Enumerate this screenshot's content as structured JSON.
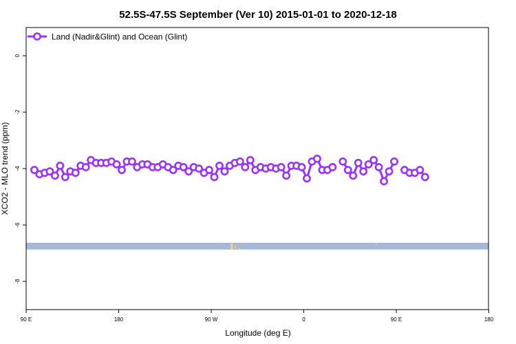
{
  "chart_data": {
    "type": "line",
    "title": "52.5S-47.5S September (Ver 10)   2015-01-01 to 2020-12-18",
    "xlabel": "Longitude (deg E)",
    "ylabel": "XCO2 - MLO trend (ppm)",
    "xlim": [
      90,
      450
    ],
    "ylim": [
      -9,
      1
    ],
    "x_ticks": [
      {
        "value": 90,
        "label": "90 E"
      },
      {
        "value": 180,
        "label": "180"
      },
      {
        "value": 270,
        "label": "90 W"
      },
      {
        "value": 360,
        "label": "0"
      },
      {
        "value": 450,
        "label": "90 E"
      },
      {
        "value": 540,
        "label": "180"
      }
    ],
    "y_ticks": [
      {
        "value": 0,
        "label": "0"
      },
      {
        "value": -2,
        "label": "-2"
      },
      {
        "value": -4,
        "label": "-4"
      },
      {
        "value": -6,
        "label": "-6"
      },
      {
        "value": -8,
        "label": "-8"
      }
    ],
    "legend": {
      "position": "top-left"
    },
    "series": [
      {
        "name": "Land (Nadir&Glint) and Ocean (Glint)",
        "color": "#9b30ff",
        "points": [
          [
            98,
            -4.05
          ],
          [
            103,
            -4.2
          ],
          [
            108,
            -4.15
          ],
          [
            113,
            -4.1
          ],
          [
            118,
            -4.25
          ],
          [
            123,
            -3.9
          ],
          [
            128,
            -4.3
          ],
          [
            133,
            -4.1
          ],
          [
            138,
            -4.15
          ],
          [
            143,
            -3.9
          ],
          [
            148,
            -3.95
          ],
          [
            153,
            -3.7
          ],
          [
            158,
            -3.8
          ],
          [
            163,
            -3.8
          ],
          [
            168,
            -3.8
          ],
          [
            173,
            -3.75
          ],
          [
            178,
            -3.85
          ],
          [
            183,
            -4.05
          ],
          [
            188,
            -3.75
          ],
          [
            193,
            -3.75
          ],
          [
            198,
            -3.95
          ],
          [
            203,
            -3.85
          ],
          [
            208,
            -3.85
          ],
          [
            213,
            -3.95
          ],
          [
            218,
            -3.95
          ],
          [
            223,
            -3.85
          ],
          [
            228,
            -3.95
          ],
          [
            233,
            -4.05
          ],
          [
            238,
            -3.9
          ],
          [
            243,
            -3.95
          ],
          [
            248,
            -4.1
          ],
          [
            253,
            -3.95
          ],
          [
            258,
            -4.0
          ],
          [
            263,
            -4.15
          ],
          [
            268,
            -4.05
          ],
          [
            273,
            -4.3
          ],
          [
            278,
            -3.9
          ],
          [
            283,
            -4.1
          ],
          [
            288,
            -3.9
          ],
          [
            293,
            -3.8
          ],
          [
            298,
            -3.75
          ],
          [
            303,
            -3.95
          ],
          [
            308,
            -3.7
          ],
          [
            313,
            -4.05
          ],
          [
            318,
            -3.95
          ],
          [
            323,
            -4.0
          ],
          [
            328,
            -3.95
          ],
          [
            333,
            -4.0
          ],
          [
            338,
            -3.95
          ],
          [
            343,
            -4.25
          ],
          [
            348,
            -3.9
          ],
          [
            353,
            -3.9
          ],
          [
            358,
            -3.95
          ],
          [
            363,
            -4.35
          ],
          [
            368,
            -3.75
          ],
          [
            373,
            -3.65
          ],
          [
            378,
            -4.05
          ],
          [
            383,
            -4.05
          ],
          [
            388,
            -3.95
          ],
          null,
          [
            398,
            -3.75
          ],
          [
            403,
            -4.05
          ],
          [
            408,
            -4.25
          ],
          [
            413,
            -3.8
          ],
          [
            418,
            -4.1
          ],
          [
            423,
            -3.85
          ],
          [
            428,
            -3.7
          ],
          [
            433,
            -3.95
          ],
          [
            438,
            -4.45
          ],
          [
            443,
            -4.1
          ],
          [
            448,
            -3.75
          ],
          null,
          [
            458,
            -4.05
          ],
          [
            463,
            -4.15
          ],
          [
            468,
            -4.15
          ],
          [
            473,
            -4.05
          ],
          [
            478,
            -4.3
          ],
          [
            483,
            -3.9
          ],
          [
            488,
            -4.3
          ],
          [
            493,
            -4.1
          ],
          [
            498,
            -4.1
          ],
          [
            503,
            -3.9
          ],
          [
            508,
            -3.95
          ],
          [
            513,
            -3.7
          ],
          [
            518,
            -3.8
          ],
          [
            523,
            -3.8
          ],
          [
            528,
            -3.8
          ],
          [
            533,
            -3.75
          ],
          [
            538,
            -3.85
          ]
        ]
      }
    ],
    "map_strip": {
      "y_range": [
        -6.87,
        -6.63
      ],
      "ocean_color": "#a5b8d8",
      "land_color": "#f5d76e",
      "land_spans": [
        [
          289,
          291,
          -6.65,
          -6.87
        ],
        [
          293,
          294,
          -6.72,
          -6.83
        ],
        [
          297,
          298,
          -6.8,
          -6.87
        ],
        [
          430,
          431,
          -6.66,
          -6.7
        ]
      ]
    }
  }
}
